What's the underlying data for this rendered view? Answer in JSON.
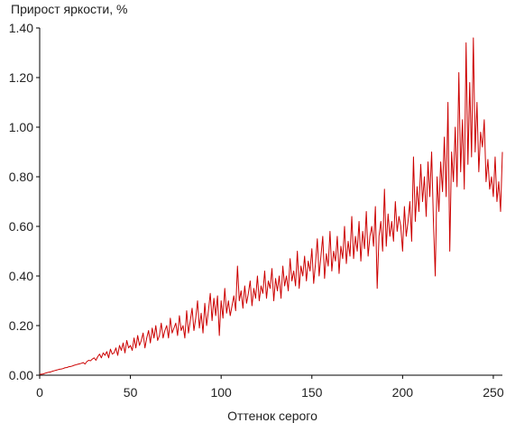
{
  "chart_data": {
    "type": "line",
    "ylabel": "Прирост яркости, %",
    "xlabel": "Оттенок серого",
    "xlim": [
      0,
      255
    ],
    "ylim": [
      0,
      1.4
    ],
    "x_ticks": [
      "0",
      "50",
      "100",
      "150",
      "200",
      "250"
    ],
    "x_tick_values": [
      0,
      50,
      100,
      150,
      200,
      250
    ],
    "y_ticks": [
      "0.00",
      "0.20",
      "0.40",
      "0.60",
      "0.80",
      "1.00",
      "1.20",
      "1.40"
    ],
    "y_tick_values": [
      0,
      0.2,
      0.4,
      0.6,
      0.8,
      1.0,
      1.2,
      1.4
    ],
    "grid": false,
    "line_color": "#cc0000",
    "series": [
      {
        "x_start": 0,
        "x_step": 1,
        "values": [
          0.003,
          0.004,
          0.005,
          0.008,
          0.01,
          0.012,
          0.013,
          0.016,
          0.018,
          0.02,
          0.022,
          0.024,
          0.025,
          0.027,
          0.03,
          0.031,
          0.034,
          0.035,
          0.037,
          0.04,
          0.042,
          0.044,
          0.046,
          0.048,
          0.051,
          0.045,
          0.055,
          0.06,
          0.058,
          0.065,
          0.07,
          0.06,
          0.075,
          0.085,
          0.07,
          0.09,
          0.08,
          0.095,
          0.07,
          0.105,
          0.085,
          0.09,
          0.11,
          0.08,
          0.12,
          0.1,
          0.13,
          0.09,
          0.14,
          0.11,
          0.12,
          0.1,
          0.15,
          0.11,
          0.16,
          0.12,
          0.14,
          0.17,
          0.11,
          0.15,
          0.18,
          0.13,
          0.19,
          0.15,
          0.2,
          0.14,
          0.16,
          0.21,
          0.15,
          0.18,
          0.2,
          0.15,
          0.23,
          0.17,
          0.19,
          0.21,
          0.16,
          0.24,
          0.18,
          0.2,
          0.15,
          0.26,
          0.17,
          0.22,
          0.27,
          0.18,
          0.23,
          0.3,
          0.19,
          0.25,
          0.17,
          0.29,
          0.2,
          0.26,
          0.33,
          0.22,
          0.31,
          0.24,
          0.32,
          0.16,
          0.3,
          0.23,
          0.35,
          0.25,
          0.3,
          0.24,
          0.28,
          0.32,
          0.26,
          0.44,
          0.3,
          0.34,
          0.27,
          0.36,
          0.29,
          0.33,
          0.38,
          0.28,
          0.35,
          0.31,
          0.4,
          0.3,
          0.36,
          0.33,
          0.42,
          0.31,
          0.38,
          0.35,
          0.43,
          0.3,
          0.39,
          0.34,
          0.4,
          0.31,
          0.44,
          0.36,
          0.4,
          0.34,
          0.47,
          0.38,
          0.42,
          0.36,
          0.5,
          0.35,
          0.44,
          0.4,
          0.48,
          0.38,
          0.46,
          0.42,
          0.51,
          0.37,
          0.45,
          0.55,
          0.4,
          0.48,
          0.56,
          0.39,
          0.49,
          0.44,
          0.58,
          0.42,
          0.5,
          0.46,
          0.56,
          0.41,
          0.52,
          0.47,
          0.6,
          0.45,
          0.54,
          0.48,
          0.64,
          0.47,
          0.56,
          0.5,
          0.62,
          0.46,
          0.58,
          0.51,
          0.66,
          0.48,
          0.56,
          0.6,
          0.52,
          0.68,
          0.35,
          0.56,
          0.62,
          0.5,
          0.75,
          0.52,
          0.65,
          0.56,
          0.62,
          0.54,
          0.7,
          0.58,
          0.64,
          0.6,
          0.5,
          0.68,
          0.56,
          0.62,
          0.7,
          0.54,
          0.88,
          0.62,
          0.76,
          0.66,
          0.85,
          0.7,
          0.8,
          0.64,
          0.86,
          0.72,
          0.9,
          0.62,
          0.4,
          0.8,
          0.66,
          0.86,
          0.74,
          0.96,
          0.72,
          1.1,
          0.5,
          0.9,
          0.78,
          1.0,
          0.76,
          1.22,
          0.82,
          1.03,
          0.75,
          1.34,
          0.85,
          1.18,
          0.88,
          1.36,
          0.9,
          1.1,
          0.82,
          0.98,
          0.92,
          1.03,
          0.78,
          0.87,
          0.75,
          0.8,
          0.72,
          0.88,
          0.7,
          0.78,
          0.66,
          0.9
        ]
      }
    ]
  }
}
